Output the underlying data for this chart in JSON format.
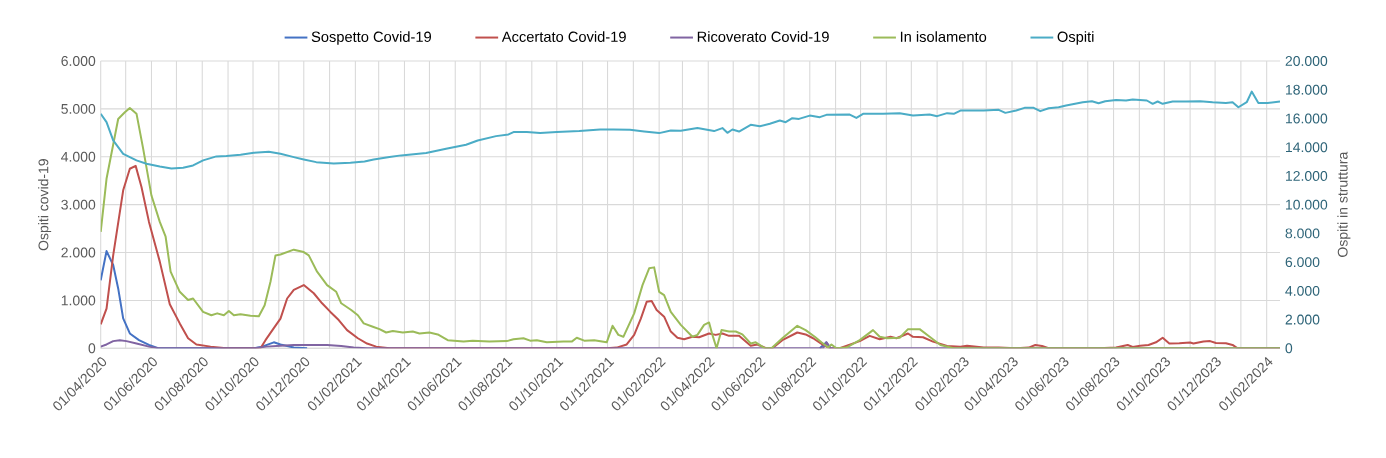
{
  "chart_data": {
    "type": "line",
    "xlabel": null,
    "ylabel": "Ospiti covid-19",
    "y2label": "Ospiti in struttura",
    "xlim": [
      "2020-04-01",
      "2024-02-17"
    ],
    "ylim": [
      0,
      6000
    ],
    "y2lim": [
      0,
      20000
    ],
    "yticks": [
      0,
      {
        "value": 1000,
        "label": "1.000"
      },
      {
        "value": 2000,
        "label": "2.000"
      },
      {
        "value": 3000,
        "label": "3.000"
      },
      {
        "value": 4000,
        "label": "4.000"
      },
      {
        "value": 5000,
        "label": "5.000"
      },
      {
        "value": 6000,
        "label": "6.000"
      }
    ],
    "y2ticks": [
      0,
      {
        "value": 2000,
        "label": "2.000"
      },
      {
        "value": 4000,
        "label": "4.000"
      },
      {
        "value": 6000,
        "label": "6.000"
      },
      {
        "value": 8000,
        "label": "8.000"
      },
      {
        "value": 10000,
        "label": "10.000"
      },
      {
        "value": 12000,
        "label": "12.000"
      },
      {
        "value": 14000,
        "label": "14.000"
      },
      {
        "value": 16000,
        "label": "16.000"
      },
      {
        "value": 18000,
        "label": "18.000"
      },
      {
        "value": 20000,
        "label": "20.000"
      }
    ],
    "xticks": [
      {
        "value": "2020-04-01",
        "label": "01/04/2020"
      },
      {
        "value": "2020-05-01",
        "label": null
      },
      {
        "value": "2020-06-01",
        "label": "01/06/2020"
      },
      {
        "value": "2020-07-01",
        "label": null
      },
      {
        "value": "2020-08-01",
        "label": "01/08/2020"
      },
      {
        "value": "2020-09-01",
        "label": null
      },
      {
        "value": "2020-10-01",
        "label": "01/10/2020"
      },
      {
        "value": "2020-11-01",
        "label": null
      },
      {
        "value": "2020-12-01",
        "label": "01/12/2020"
      },
      {
        "value": "2021-01-01",
        "label": null
      },
      {
        "value": "2021-02-01",
        "label": "01/02/2021"
      },
      {
        "value": "2021-03-01",
        "label": null
      },
      {
        "value": "2021-04-01",
        "label": "01/04/2021"
      },
      {
        "value": "2021-05-01",
        "label": null
      },
      {
        "value": "2021-06-01",
        "label": "01/06/2021"
      },
      {
        "value": "2021-07-01",
        "label": null
      },
      {
        "value": "2021-08-01",
        "label": "01/08/2021"
      },
      {
        "value": "2021-09-01",
        "label": null
      },
      {
        "value": "2021-10-01",
        "label": "01/10/2021"
      },
      {
        "value": "2021-11-01",
        "label": null
      },
      {
        "value": "2021-12-01",
        "label": "01/12/2021"
      },
      {
        "value": "2022-01-01",
        "label": null
      },
      {
        "value": "2022-02-01",
        "label": "01/02/2022"
      },
      {
        "value": "2022-03-01",
        "label": null
      },
      {
        "value": "2022-04-01",
        "label": "01/04/2022"
      },
      {
        "value": "2022-05-01",
        "label": null
      },
      {
        "value": "2022-06-01",
        "label": "01/06/2022"
      },
      {
        "value": "2022-07-01",
        "label": null
      },
      {
        "value": "2022-08-01",
        "label": "01/08/2022"
      },
      {
        "value": "2022-09-01",
        "label": null
      },
      {
        "value": "2022-10-01",
        "label": "01/10/2022"
      },
      {
        "value": "2022-11-01",
        "label": null
      },
      {
        "value": "2022-12-01",
        "label": "01/12/2022"
      },
      {
        "value": "2023-01-01",
        "label": null
      },
      {
        "value": "2023-02-01",
        "label": "01/02/2023"
      },
      {
        "value": "2023-03-01",
        "label": null
      },
      {
        "value": "2023-04-01",
        "label": "01/04/2023"
      },
      {
        "value": "2023-05-01",
        "label": null
      },
      {
        "value": "2023-06-01",
        "label": "01/06/2023"
      },
      {
        "value": "2023-07-01",
        "label": null
      },
      {
        "value": "2023-08-01",
        "label": "01/08/2023"
      },
      {
        "value": "2023-09-01",
        "label": null
      },
      {
        "value": "2023-10-01",
        "label": "01/10/2023"
      },
      {
        "value": "2023-11-01",
        "label": null
      },
      {
        "value": "2023-12-01",
        "label": "01/12/2023"
      },
      {
        "value": "2024-01-01",
        "label": null
      },
      {
        "value": "2024-02-01",
        "label": "01/02/2024"
      }
    ],
    "grid": true,
    "legend": "top",
    "marker": "none",
    "line_style": "solid",
    "series": [
      {
        "name": "Sospetto Covid-19",
        "color": "#4472c4",
        "x": [
          "2020-04-01",
          "2020-04-08",
          "2020-04-16",
          "2020-04-22",
          "2020-04-28",
          "2020-05-06",
          "2020-05-17",
          "2020-05-29",
          "2020-06-09",
          "2020-10-02",
          "2020-10-12",
          "2020-10-26",
          "2020-11-03",
          "2020-11-19",
          "2020-12-05",
          "2021-06-01",
          "2022-08-13",
          "2022-08-21",
          "2022-08-26"
        ],
        "values": [
          1420,
          2030,
          1740,
          1250,
          625,
          310,
          170,
          70,
          0,
          0,
          35,
          125,
          80,
          15,
          0,
          null,
          0,
          125,
          0
        ]
      },
      {
        "name": "Accertato Covid-19",
        "color": "#c0504d",
        "x": [
          "2020-04-01",
          "2020-04-08",
          "2020-04-16",
          "2020-04-28",
          "2020-05-06",
          "2020-05-13",
          "2020-05-20",
          "2020-05-29",
          "2020-06-11",
          "2020-06-23",
          "2020-07-05",
          "2020-07-15",
          "2020-07-25",
          "2020-08-11",
          "2020-08-30",
          "2020-10-10",
          "2020-10-16",
          "2020-10-26",
          "2020-11-03",
          "2020-11-11",
          "2020-11-19",
          "2020-12-01",
          "2020-12-13",
          "2020-12-23",
          "2021-01-02",
          "2021-01-12",
          "2021-01-22",
          "2021-02-04",
          "2021-02-15",
          "2021-02-26",
          "2021-03-14",
          "2021-06-30",
          "2021-11-30",
          "2021-12-12",
          "2021-12-24",
          "2022-01-02",
          "2022-01-10",
          "2022-01-17",
          "2022-01-23",
          "2022-01-29",
          "2022-02-07",
          "2022-02-15",
          "2022-02-23",
          "2022-03-03",
          "2022-03-13",
          "2022-03-21",
          "2022-04-02",
          "2022-04-10",
          "2022-04-18",
          "2022-04-26",
          "2022-05-08",
          "2022-05-22",
          "2022-05-30",
          "2022-06-10",
          "2022-06-17",
          "2022-06-29",
          "2022-07-17",
          "2022-07-27",
          "2022-08-05",
          "2022-08-17",
          "2022-08-25",
          "2022-09-06",
          "2022-09-30",
          "2022-10-12",
          "2022-10-24",
          "2022-11-06",
          "2022-11-13",
          "2022-11-27",
          "2022-12-03",
          "2022-12-15",
          "2022-12-27",
          "2023-01-13",
          "2023-01-29",
          "2023-02-06",
          "2023-02-26",
          "2023-03-16",
          "2023-04-06",
          "2023-04-21",
          "2023-04-29",
          "2023-05-07",
          "2023-05-15",
          "2023-07-14",
          "2023-08-04",
          "2023-08-18",
          "2023-08-24",
          "2023-09-02",
          "2023-09-12",
          "2023-09-21",
          "2023-09-29",
          "2023-10-07",
          "2023-10-19",
          "2023-11-01",
          "2023-11-05",
          "2023-11-17",
          "2023-11-25",
          "2023-12-02",
          "2023-12-14",
          "2023-12-22",
          "2023-12-28",
          "2024-02-17"
        ],
        "values": [
          500,
          830,
          1940,
          3300,
          3750,
          3810,
          3370,
          2640,
          1810,
          920,
          520,
          210,
          80,
          35,
          0,
          0,
          170,
          420,
          620,
          1040,
          1220,
          1320,
          1150,
          940,
          760,
          590,
          380,
          210,
          100,
          35,
          0,
          0,
          0,
          15,
          80,
          280,
          620,
          970,
          990,
          800,
          660,
          350,
          220,
          190,
          240,
          230,
          310,
          280,
          310,
          260,
          260,
          55,
          80,
          0,
          0,
          170,
          330,
          290,
          210,
          70,
          0,
          0,
          150,
          260,
          190,
          240,
          210,
          310,
          240,
          230,
          140,
          50,
          35,
          55,
          15,
          15,
          0,
          15,
          70,
          50,
          0,
          0,
          15,
          70,
          30,
          55,
          70,
          125,
          220,
          100,
          105,
          120,
          100,
          140,
          150,
          110,
          105,
          70,
          0,
          0
        ]
      },
      {
        "name": "Ricoverato Covid-19",
        "color": "#8064a2",
        "x": [
          "2020-04-01",
          "2020-04-08",
          "2020-04-16",
          "2020-04-24",
          "2020-05-02",
          "2020-05-14",
          "2020-05-29",
          "2020-06-09",
          "2020-10-02",
          "2020-10-17",
          "2020-11-03",
          "2020-11-19",
          "2020-12-29",
          "2021-01-15",
          "2021-01-30",
          "2021-02-15",
          "2022-08-17",
          "2022-08-21",
          "2022-08-26",
          "2024-02-17"
        ],
        "values": [
          35,
          80,
          150,
          170,
          150,
          100,
          35,
          0,
          0,
          35,
          55,
          70,
          70,
          50,
          15,
          0,
          0,
          125,
          0,
          0
        ]
      },
      {
        "name": "In isolamento",
        "color": "#9bbb59",
        "x": [
          "2020-04-01",
          "2020-04-08",
          "2020-04-22",
          "2020-04-30",
          "2020-05-06",
          "2020-05-14",
          "2020-05-22",
          "2020-06-01",
          "2020-06-11",
          "2020-06-18",
          "2020-06-24",
          "2020-07-05",
          "2020-07-15",
          "2020-07-21",
          "2020-08-02",
          "2020-08-12",
          "2020-08-19",
          "2020-08-27",
          "2020-09-02",
          "2020-09-08",
          "2020-09-16",
          "2020-09-28",
          "2020-10-08",
          "2020-10-15",
          "2020-10-22",
          "2020-10-28",
          "2020-11-03",
          "2020-11-19",
          "2020-12-01",
          "2020-12-07",
          "2020-12-17",
          "2020-12-29",
          "2021-01-09",
          "2021-01-15",
          "2021-01-27",
          "2021-02-04",
          "2021-02-11",
          "2021-02-22",
          "2021-03-02",
          "2021-03-10",
          "2021-03-18",
          "2021-03-30",
          "2021-04-11",
          "2021-04-19",
          "2021-05-01",
          "2021-05-11",
          "2021-05-23",
          "2021-06-11",
          "2021-06-22",
          "2021-07-12",
          "2021-08-02",
          "2021-08-10",
          "2021-08-22",
          "2021-08-30",
          "2021-09-07",
          "2021-09-19",
          "2021-10-09",
          "2021-10-19",
          "2021-10-25",
          "2021-11-03",
          "2021-11-15",
          "2021-11-30",
          "2021-12-07",
          "2021-12-14",
          "2021-12-20",
          "2022-01-02",
          "2022-01-12",
          "2022-01-20",
          "2022-01-26",
          "2022-02-01",
          "2022-02-07",
          "2022-02-15",
          "2022-02-27",
          "2022-03-13",
          "2022-03-19",
          "2022-03-27",
          "2022-04-02",
          "2022-04-06",
          "2022-04-11",
          "2022-04-17",
          "2022-04-26",
          "2022-05-04",
          "2022-05-12",
          "2022-05-22",
          "2022-05-28",
          "2022-06-08",
          "2022-06-16",
          "2022-06-29",
          "2022-07-17",
          "2022-07-27",
          "2022-08-07",
          "2022-08-15",
          "2022-08-23",
          "2022-08-27",
          "2022-09-02",
          "2022-09-14",
          "2022-09-30",
          "2022-10-16",
          "2022-10-24",
          "2022-11-02",
          "2022-11-17",
          "2022-11-27",
          "2022-12-11",
          "2022-12-23",
          "2023-01-05",
          "2023-01-21",
          "2023-02-02",
          "2024-02-17"
        ],
        "values": [
          2430,
          3540,
          4790,
          4930,
          5020,
          4900,
          4170,
          3190,
          2640,
          2330,
          1600,
          1180,
          1010,
          1040,
          760,
          690,
          730,
          690,
          780,
          690,
          710,
          680,
          670,
          900,
          1390,
          1940,
          1960,
          2060,
          2010,
          1940,
          1600,
          1320,
          1180,
          940,
          800,
          690,
          520,
          450,
          400,
          330,
          360,
          330,
          350,
          310,
          330,
          290,
          170,
          140,
          160,
          140,
          150,
          190,
          210,
          160,
          170,
          125,
          140,
          140,
          220,
          160,
          170,
          125,
          470,
          280,
          240,
          730,
          1320,
          1670,
          1690,
          1180,
          1110,
          760,
          490,
          240,
          280,
          490,
          540,
          280,
          0,
          380,
          350,
          350,
          290,
          100,
          125,
          0,
          0,
          210,
          470,
          380,
          240,
          125,
          15,
          80,
          0,
          15,
          170,
          380,
          240,
          210,
          220,
          400,
          400,
          240,
          70,
          0,
          0,
          0
        ]
      },
      {
        "name": "Ospiti",
        "color": "#4bacc6",
        "axis": "y2",
        "x": [
          "2020-04-01",
          "2020-04-08",
          "2020-04-16",
          "2020-04-28",
          "2020-05-14",
          "2020-05-26",
          "2020-06-11",
          "2020-06-25",
          "2020-07-09",
          "2020-07-21",
          "2020-08-02",
          "2020-08-18",
          "2020-08-30",
          "2020-09-16",
          "2020-10-02",
          "2020-10-20",
          "2020-11-03",
          "2020-11-19",
          "2020-12-01",
          "2020-12-16",
          "2021-01-06",
          "2021-01-26",
          "2021-02-12",
          "2021-02-23",
          "2021-03-14",
          "2021-03-28",
          "2021-04-27",
          "2021-05-21",
          "2021-06-14",
          "2021-06-28",
          "2021-07-20",
          "2021-08-04",
          "2021-08-10",
          "2021-08-26",
          "2021-09-11",
          "2021-10-01",
          "2021-10-28",
          "2021-11-22",
          "2021-12-08",
          "2021-12-28",
          "2022-01-14",
          "2022-02-01",
          "2022-02-15",
          "2022-02-27",
          "2022-03-19",
          "2022-04-08",
          "2022-04-18",
          "2022-04-24",
          "2022-04-30",
          "2022-05-08",
          "2022-05-22",
          "2022-06-02",
          "2022-06-14",
          "2022-06-26",
          "2022-07-03",
          "2022-07-11",
          "2022-07-19",
          "2022-08-01",
          "2022-08-13",
          "2022-08-21",
          "2022-09-18",
          "2022-09-26",
          "2022-10-04",
          "2022-10-28",
          "2022-11-17",
          "2022-12-03",
          "2022-12-23",
          "2023-01-01",
          "2023-01-13",
          "2023-01-21",
          "2023-01-29",
          "2023-02-26",
          "2023-03-16",
          "2023-03-24",
          "2023-04-06",
          "2023-04-16",
          "2023-04-27",
          "2023-05-05",
          "2023-05-15",
          "2023-05-27",
          "2023-06-05",
          "2023-06-25",
          "2023-07-06",
          "2023-07-14",
          "2023-07-22",
          "2023-08-04",
          "2023-08-16",
          "2023-08-24",
          "2023-09-10",
          "2023-09-17",
          "2023-09-23",
          "2023-09-29",
          "2023-10-11",
          "2023-10-27",
          "2023-11-13",
          "2023-11-28",
          "2023-12-14",
          "2023-12-22",
          "2023-12-29",
          "2024-01-08",
          "2024-01-14",
          "2024-01-22",
          "2024-02-02",
          "2024-02-17"
        ],
        "values": [
          16320,
          15740,
          14470,
          13540,
          13080,
          12850,
          12660,
          12520,
          12570,
          12730,
          13080,
          13360,
          13380,
          13470,
          13610,
          13680,
          13540,
          13310,
          13150,
          12960,
          12870,
          12920,
          13010,
          13150,
          13310,
          13430,
          13590,
          13890,
          14170,
          14470,
          14770,
          14890,
          15050,
          15050,
          14980,
          15050,
          15120,
          15230,
          15230,
          15210,
          15090,
          14980,
          15160,
          15140,
          15330,
          15120,
          15330,
          15000,
          15230,
          15090,
          15560,
          15460,
          15630,
          15860,
          15740,
          16020,
          15970,
          16200,
          16090,
          16250,
          16270,
          16040,
          16320,
          16320,
          16370,
          16200,
          16270,
          16160,
          16370,
          16320,
          16550,
          16550,
          16600,
          16390,
          16550,
          16740,
          16740,
          16510,
          16710,
          16780,
          16900,
          17130,
          17200,
          17060,
          17200,
          17290,
          17250,
          17320,
          17250,
          17020,
          17180,
          17020,
          17180,
          17180,
          17200,
          17130,
          17080,
          17130,
          16780,
          17130,
          17870,
          17080,
          17080,
          17180
        ]
      }
    ]
  }
}
